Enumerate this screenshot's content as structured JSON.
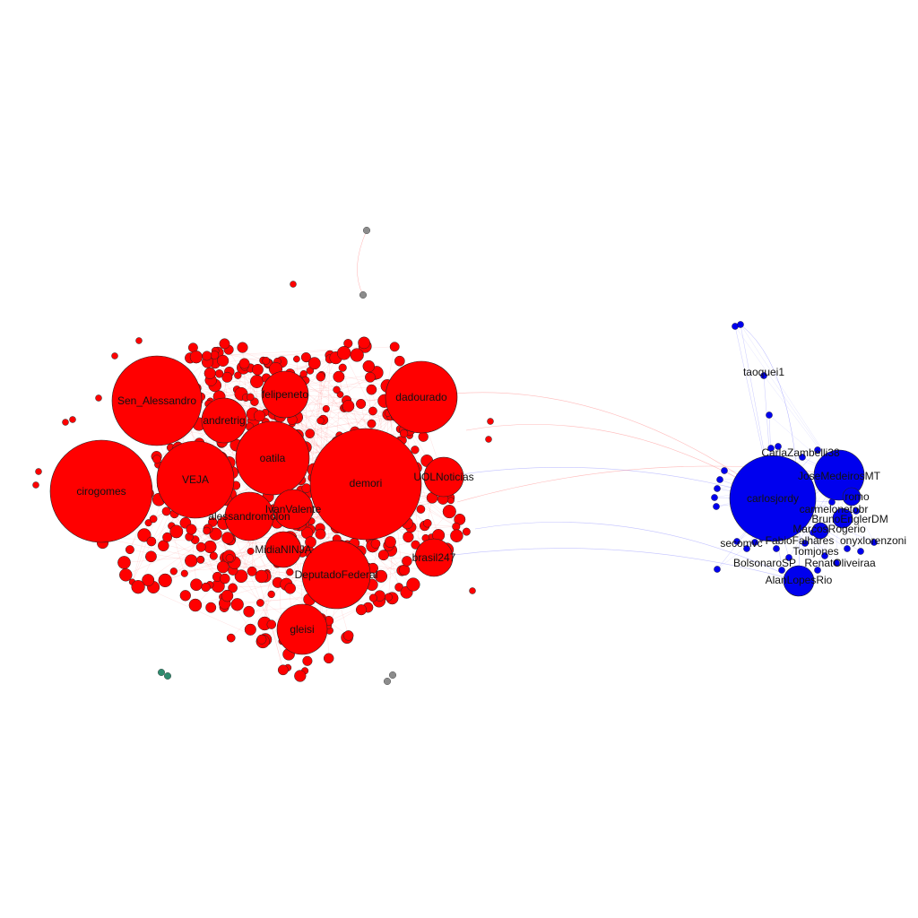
{
  "colors": {
    "left_cluster": "#ff0000",
    "right_cluster": "#0000ee",
    "isolated_gray": "#8c8c8c",
    "isolated_teal": "#2e8b6e",
    "left_edges": "#ff6a6a",
    "right_edges": "#7a7aff"
  },
  "left_cluster_labels": [
    "Sen_Alessandro",
    "cirogomes",
    "VEJA",
    "andretrig",
    "felipeneto",
    "dadourado",
    "oatila",
    "demori",
    "UOLNoticias",
    "alessandromolon",
    "IvanValente",
    "MidiaNINJA",
    "DeputadoFederal",
    "brasil247",
    "gleisi"
  ],
  "right_cluster_labels": [
    "taoquei1",
    "CarlaZambelli38",
    "JoseMedeirosMT",
    "carlosjordy",
    "romo",
    "carmelonetobr",
    "BrunoEnglerDM",
    "MarcosRogerio",
    "secomvc",
    "FabioFalhares",
    "onyxlorenzoni",
    "Tomjones",
    "BolsonaroSP",
    "RenatOliveiraa",
    "AlanLopesRio"
  ]
}
